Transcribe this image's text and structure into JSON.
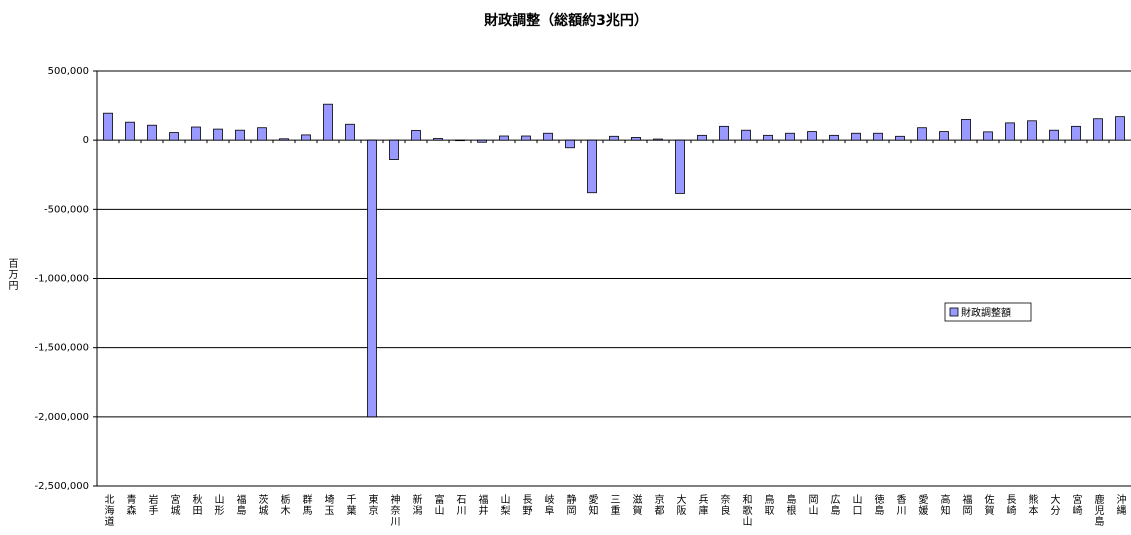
{
  "chart_data": {
    "type": "bar",
    "title": "財政調整（総額約3兆円）",
    "y_label": "百万円",
    "categories": [
      "北海道",
      "青森",
      "岩手",
      "宮城",
      "秋田",
      "山形",
      "福島",
      "茨城",
      "栃木",
      "群馬",
      "埼玉",
      "千葉",
      "東京",
      "神奈川",
      "新潟",
      "富山",
      "石川",
      "福井",
      "山梨",
      "長野",
      "岐阜",
      "静岡",
      "愛知",
      "三重",
      "滋賀",
      "京都",
      "大阪",
      "兵庫",
      "奈良",
      "和歌山",
      "鳥取",
      "島根",
      "岡山",
      "広島",
      "山口",
      "徳島",
      "香川",
      "愛媛",
      "高知",
      "福岡",
      "佐賀",
      "長崎",
      "熊本",
      "大分",
      "宮崎",
      "鹿児島",
      "沖縄"
    ],
    "series": [
      {
        "name": "財政調整額",
        "color": "#9999ff",
        "values": [
          195000,
          130000,
          108000,
          55000,
          95000,
          80000,
          72000,
          90000,
          10000,
          38000,
          260000,
          115000,
          -2000000,
          -140000,
          70000,
          12000,
          0,
          -15000,
          30000,
          30000,
          50000,
          -55000,
          -380000,
          28000,
          20000,
          8000,
          -385000,
          35000,
          100000,
          72000,
          35000,
          50000,
          62000,
          35000,
          50000,
          50000,
          28000,
          90000,
          62000,
          150000,
          60000,
          125000,
          140000,
          72000,
          100000,
          155000,
          170000
        ]
      }
    ],
    "ylim": [
      -2500000,
      500000
    ],
    "yticks": [
      {
        "value": -2500000,
        "label": "-2,500,000"
      },
      {
        "value": -2000000,
        "label": "-2,000,000"
      },
      {
        "value": -1500000,
        "label": "-1,500,000"
      },
      {
        "value": -1000000,
        "label": "-1,000,000"
      },
      {
        "value": -500000,
        "label": "-500,000"
      },
      0,
      {
        "value": 500000,
        "label": "500,000"
      }
    ],
    "grid": true,
    "legend": "right"
  }
}
